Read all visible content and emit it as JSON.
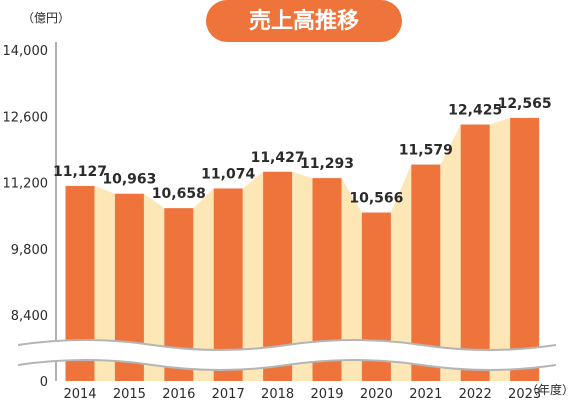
{
  "chart_data": {
    "type": "bar",
    "title": "売上高推移",
    "unit_label": "（億円）",
    "x_unit_label": "（年度）",
    "categories": [
      "2014",
      "2015",
      "2016",
      "2017",
      "2018",
      "2019",
      "2020",
      "2021",
      "2022",
      "2023"
    ],
    "values": [
      11127,
      10963,
      10658,
      11074,
      11427,
      11293,
      10566,
      11579,
      12425,
      12565
    ],
    "value_labels": [
      "11,127",
      "10,963",
      "10,658",
      "11,074",
      "11,427",
      "11,293",
      "10,566",
      "11,579",
      "12,425",
      "12,565"
    ],
    "y_ticks": [
      8400,
      9800,
      11200,
      12600,
      14000
    ],
    "y_tick_labels": [
      "8,400",
      "9,800",
      "11,200",
      "12,600",
      "14,000"
    ],
    "y_zero_label": "0",
    "ylim": [
      8400,
      14000
    ],
    "axis_break": true,
    "grid": false,
    "colors": {
      "bar": "#ef743c",
      "bridge": "#fde7b7",
      "title_bg": "#ef743c",
      "title_text": "#ffffff",
      "axis": "#666666",
      "text": "#2b2b2b"
    }
  }
}
